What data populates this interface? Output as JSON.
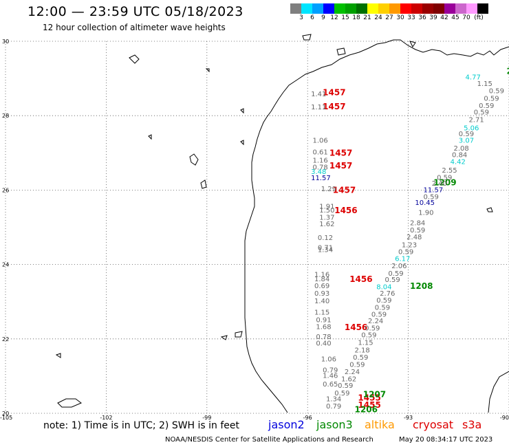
{
  "header": {
    "title": "12:00 — 23:59 UTC 05/18/2023",
    "subtitle": "12 hour collection of altimeter wave heights"
  },
  "colorbar": {
    "colors": [
      "#7f7f7f",
      "#00e5ff",
      "#00a0ff",
      "#0000ff",
      "#00c000",
      "#00a000",
      "#007000",
      "#ffff00",
      "#ffd000",
      "#ff9900",
      "#ff0000",
      "#cc0000",
      "#990000",
      "#7f0000",
      "#990099",
      "#cc66cc",
      "#ff99ff",
      "#000000"
    ],
    "labels": [
      "3",
      "6",
      "9",
      "12",
      "15",
      "18",
      "21",
      "24",
      "27",
      "30",
      "33",
      "36",
      "39",
      "42",
      "45",
      "70",
      "(ft)"
    ]
  },
  "map": {
    "lat_labels": [
      "30",
      "28",
      "26",
      "24",
      "22",
      "20"
    ],
    "lon_labels": [
      "-105",
      "-102",
      "-99",
      "-96",
      "-93",
      "-90"
    ]
  },
  "observations": [
    {
      "text": "1457",
      "color": "#dd0000",
      "lon": -95.55,
      "lat": 28.55,
      "bold": true
    },
    {
      "text": "1457",
      "color": "#dd0000",
      "lon": -95.55,
      "lat": 28.17,
      "bold": true
    },
    {
      "text": "1457",
      "color": "#dd0000",
      "lon": -95.35,
      "lat": 26.92,
      "bold": true
    },
    {
      "text": "1457",
      "color": "#dd0000",
      "lon": -95.35,
      "lat": 26.58,
      "bold": true
    },
    {
      "text": "1457",
      "color": "#dd0000",
      "lon": -95.25,
      "lat": 25.92,
      "bold": true
    },
    {
      "text": "1456",
      "color": "#dd0000",
      "lon": -95.2,
      "lat": 25.38,
      "bold": true
    },
    {
      "text": "1456",
      "color": "#dd0000",
      "lon": -94.75,
      "lat": 23.53,
      "bold": true
    },
    {
      "text": "1456",
      "color": "#dd0000",
      "lon": -94.9,
      "lat": 22.24,
      "bold": true
    },
    {
      "text": "1455",
      "color": "#dd0000",
      "lon": -94.5,
      "lat": 20.34,
      "bold": true
    },
    {
      "text": "1455",
      "color": "#dd0000",
      "lon": -94.5,
      "lat": 20.15,
      "bold": true
    },
    {
      "text": "1209",
      "color": "#008800",
      "lon": -92.25,
      "lat": 26.13,
      "bold": true
    },
    {
      "text": "1208",
      "color": "#008800",
      "lon": -92.95,
      "lat": 23.35,
      "bold": true
    },
    {
      "text": "1207",
      "color": "#008800",
      "lon": -94.35,
      "lat": 20.43,
      "bold": true
    },
    {
      "text": "1206",
      "color": "#008800",
      "lon": -94.6,
      "lat": 20.03,
      "bold": true
    },
    {
      "text": "2",
      "color": "#008800",
      "lon": -89.9,
      "lat": 29.12,
      "bold": true
    },
    {
      "text": "1.41",
      "color": "#666666",
      "lon": -95.9,
      "lat": 28.52
    },
    {
      "text": "1.11",
      "color": "#666666",
      "lon": -95.9,
      "lat": 28.17
    },
    {
      "text": "1.06",
      "color": "#666666",
      "lon": -95.85,
      "lat": 27.27
    },
    {
      "text": "0.61",
      "color": "#666666",
      "lon": -95.85,
      "lat": 26.96
    },
    {
      "text": "1.16",
      "color": "#666666",
      "lon": -95.85,
      "lat": 26.74
    },
    {
      "text": "0.78",
      "color": "#666666",
      "lon": -95.85,
      "lat": 26.55
    },
    {
      "text": "3.48",
      "color": "#00cccc",
      "lon": -95.9,
      "lat": 26.43
    },
    {
      "text": "11.57",
      "color": "#000099",
      "lon": -95.9,
      "lat": 26.27
    },
    {
      "text": "1.29",
      "color": "#666666",
      "lon": -95.6,
      "lat": 25.97
    },
    {
      "text": "1.91",
      "color": "#666666",
      "lon": -95.65,
      "lat": 25.5
    },
    {
      "text": "1.50",
      "color": "#666666",
      "lon": -95.65,
      "lat": 25.4
    },
    {
      "text": "1.37",
      "color": "#666666",
      "lon": -95.65,
      "lat": 25.2
    },
    {
      "text": "1.62",
      "color": "#666666",
      "lon": -95.65,
      "lat": 25.03
    },
    {
      "text": "0.12",
      "color": "#666666",
      "lon": -95.7,
      "lat": 24.66
    },
    {
      "text": "0.71",
      "color": "#666666",
      "lon": -95.7,
      "lat": 24.39
    },
    {
      "text": "1.34",
      "color": "#666666",
      "lon": -95.7,
      "lat": 24.33
    },
    {
      "text": "1.16",
      "color": "#666666",
      "lon": -95.8,
      "lat": 23.67
    },
    {
      "text": "1.84",
      "color": "#666666",
      "lon": -95.8,
      "lat": 23.55
    },
    {
      "text": "0.69",
      "color": "#666666",
      "lon": -95.8,
      "lat": 23.36
    },
    {
      "text": "0.93",
      "color": "#666666",
      "lon": -95.8,
      "lat": 23.16
    },
    {
      "text": "1.40",
      "color": "#666666",
      "lon": -95.8,
      "lat": 22.96
    },
    {
      "text": "1.15",
      "color": "#666666",
      "lon": -95.8,
      "lat": 22.65
    },
    {
      "text": "0.91",
      "color": "#666666",
      "lon": -95.75,
      "lat": 22.45
    },
    {
      "text": "1.68",
      "color": "#666666",
      "lon": -95.75,
      "lat": 22.26
    },
    {
      "text": "0.78",
      "color": "#666666",
      "lon": -95.75,
      "lat": 22.0
    },
    {
      "text": "0.40",
      "color": "#666666",
      "lon": -95.75,
      "lat": 21.82
    },
    {
      "text": "1.06",
      "color": "#666666",
      "lon": -95.6,
      "lat": 21.4
    },
    {
      "text": "0.79",
      "color": "#666666",
      "lon": -95.55,
      "lat": 21.1
    },
    {
      "text": "1.46",
      "color": "#666666",
      "lon": -95.55,
      "lat": 20.95
    },
    {
      "text": "0.65",
      "color": "#666666",
      "lon": -95.55,
      "lat": 20.72
    },
    {
      "text": "1.34",
      "color": "#666666",
      "lon": -95.45,
      "lat": 20.32
    },
    {
      "text": "0.79",
      "color": "#666666",
      "lon": -95.45,
      "lat": 20.13
    },
    {
      "text": "4.77",
      "color": "#00cccc",
      "lon": -91.3,
      "lat": 28.97
    },
    {
      "text": "1.15",
      "color": "#666666",
      "lon": -90.95,
      "lat": 28.8
    },
    {
      "text": "0.59",
      "color": "#666666",
      "lon": -90.6,
      "lat": 28.6
    },
    {
      "text": "0.59",
      "color": "#666666",
      "lon": -90.75,
      "lat": 28.4
    },
    {
      "text": "0.59",
      "color": "#666666",
      "lon": -90.9,
      "lat": 28.21
    },
    {
      "text": "0.59",
      "color": "#666666",
      "lon": -91.05,
      "lat": 28.03
    },
    {
      "text": "2.71",
      "color": "#666666",
      "lon": -91.2,
      "lat": 27.83
    },
    {
      "text": "5.06",
      "color": "#00cccc",
      "lon": -91.35,
      "lat": 27.61
    },
    {
      "text": "0.59",
      "color": "#666666",
      "lon": -91.5,
      "lat": 27.45
    },
    {
      "text": "3.07",
      "color": "#00cccc",
      "lon": -91.5,
      "lat": 27.27
    },
    {
      "text": "2.08",
      "color": "#666666",
      "lon": -91.65,
      "lat": 27.06
    },
    {
      "text": "0.84",
      "color": "#666666",
      "lon": -91.7,
      "lat": 26.89
    },
    {
      "text": "4.42",
      "color": "#00cccc",
      "lon": -91.75,
      "lat": 26.7
    },
    {
      "text": "2.55",
      "color": "#666666",
      "lon": -92.0,
      "lat": 26.47
    },
    {
      "text": "0.59",
      "color": "#666666",
      "lon": -92.15,
      "lat": 26.28
    },
    {
      "text": "2.40",
      "color": "#666666",
      "lon": -92.3,
      "lat": 26.12
    },
    {
      "text": "11.57",
      "color": "#000099",
      "lon": -92.55,
      "lat": 25.94
    },
    {
      "text": "0.59",
      "color": "#666666",
      "lon": -92.55,
      "lat": 25.76
    },
    {
      "text": "10.45",
      "color": "#000099",
      "lon": -92.8,
      "lat": 25.6
    },
    {
      "text": "1.90",
      "color": "#666666",
      "lon": -92.7,
      "lat": 25.33
    },
    {
      "text": "2.84",
      "color": "#666666",
      "lon": -92.95,
      "lat": 25.06
    },
    {
      "text": "0.59",
      "color": "#666666",
      "lon": -92.95,
      "lat": 24.86
    },
    {
      "text": "2.48",
      "color": "#666666",
      "lon": -93.05,
      "lat": 24.68
    },
    {
      "text": "1.23",
      "color": "#666666",
      "lon": -93.2,
      "lat": 24.46
    },
    {
      "text": "0.59",
      "color": "#666666",
      "lon": -93.3,
      "lat": 24.28
    },
    {
      "text": "6.17",
      "color": "#00cccc",
      "lon": -93.4,
      "lat": 24.09
    },
    {
      "text": "2.06",
      "color": "#666666",
      "lon": -93.5,
      "lat": 23.9
    },
    {
      "text": "0.59",
      "color": "#666666",
      "lon": -93.6,
      "lat": 23.7
    },
    {
      "text": "0.59",
      "color": "#666666",
      "lon": -93.7,
      "lat": 23.53
    },
    {
      "text": "8.04",
      "color": "#00cccc",
      "lon": -93.95,
      "lat": 23.34
    },
    {
      "text": "2.76",
      "color": "#666666",
      "lon": -93.85,
      "lat": 23.16
    },
    {
      "text": "0.59",
      "color": "#666666",
      "lon": -93.95,
      "lat": 22.98
    },
    {
      "text": "0.59",
      "color": "#666666",
      "lon": -94.0,
      "lat": 22.78
    },
    {
      "text": "0.59",
      "color": "#666666",
      "lon": -94.1,
      "lat": 22.6
    },
    {
      "text": "2.24",
      "color": "#666666",
      "lon": -94.2,
      "lat": 22.42
    },
    {
      "text": "0.59",
      "color": "#666666",
      "lon": -94.3,
      "lat": 22.23
    },
    {
      "text": "0.59",
      "color": "#666666",
      "lon": -94.4,
      "lat": 22.04
    },
    {
      "text": "1.15",
      "color": "#666666",
      "lon": -94.5,
      "lat": 21.84
    },
    {
      "text": "2.18",
      "color": "#666666",
      "lon": -94.6,
      "lat": 21.64
    },
    {
      "text": "0.59",
      "color": "#666666",
      "lon": -94.65,
      "lat": 21.44
    },
    {
      "text": "0.59",
      "color": "#666666",
      "lon": -94.75,
      "lat": 21.25
    },
    {
      "text": "2.24",
      "color": "#666666",
      "lon": -94.9,
      "lat": 21.05
    },
    {
      "text": "1.62",
      "color": "#666666",
      "lon": -95.0,
      "lat": 20.86
    },
    {
      "text": "0.59",
      "color": "#666666",
      "lon": -95.1,
      "lat": 20.68
    },
    {
      "text": "0.59",
      "color": "#666666",
      "lon": -95.2,
      "lat": 20.48
    }
  ],
  "footer": {
    "note": "note:  1) Time is in UTC;  2) SWH is in feet",
    "legend": [
      {
        "label": "jason2",
        "color": "#0000dd"
      },
      {
        "label": "jason3",
        "color": "#008800"
      },
      {
        "label": "altika",
        "color": "#ff9900"
      },
      {
        "label": "cryosat",
        "color": "#dd0000"
      },
      {
        "label": "s3a",
        "color": "#dd0000"
      }
    ],
    "credit": "NOAA/NESDIS Center for Satellite Applications and Research",
    "date": "May 20 08:34:17 UTC 2023"
  }
}
